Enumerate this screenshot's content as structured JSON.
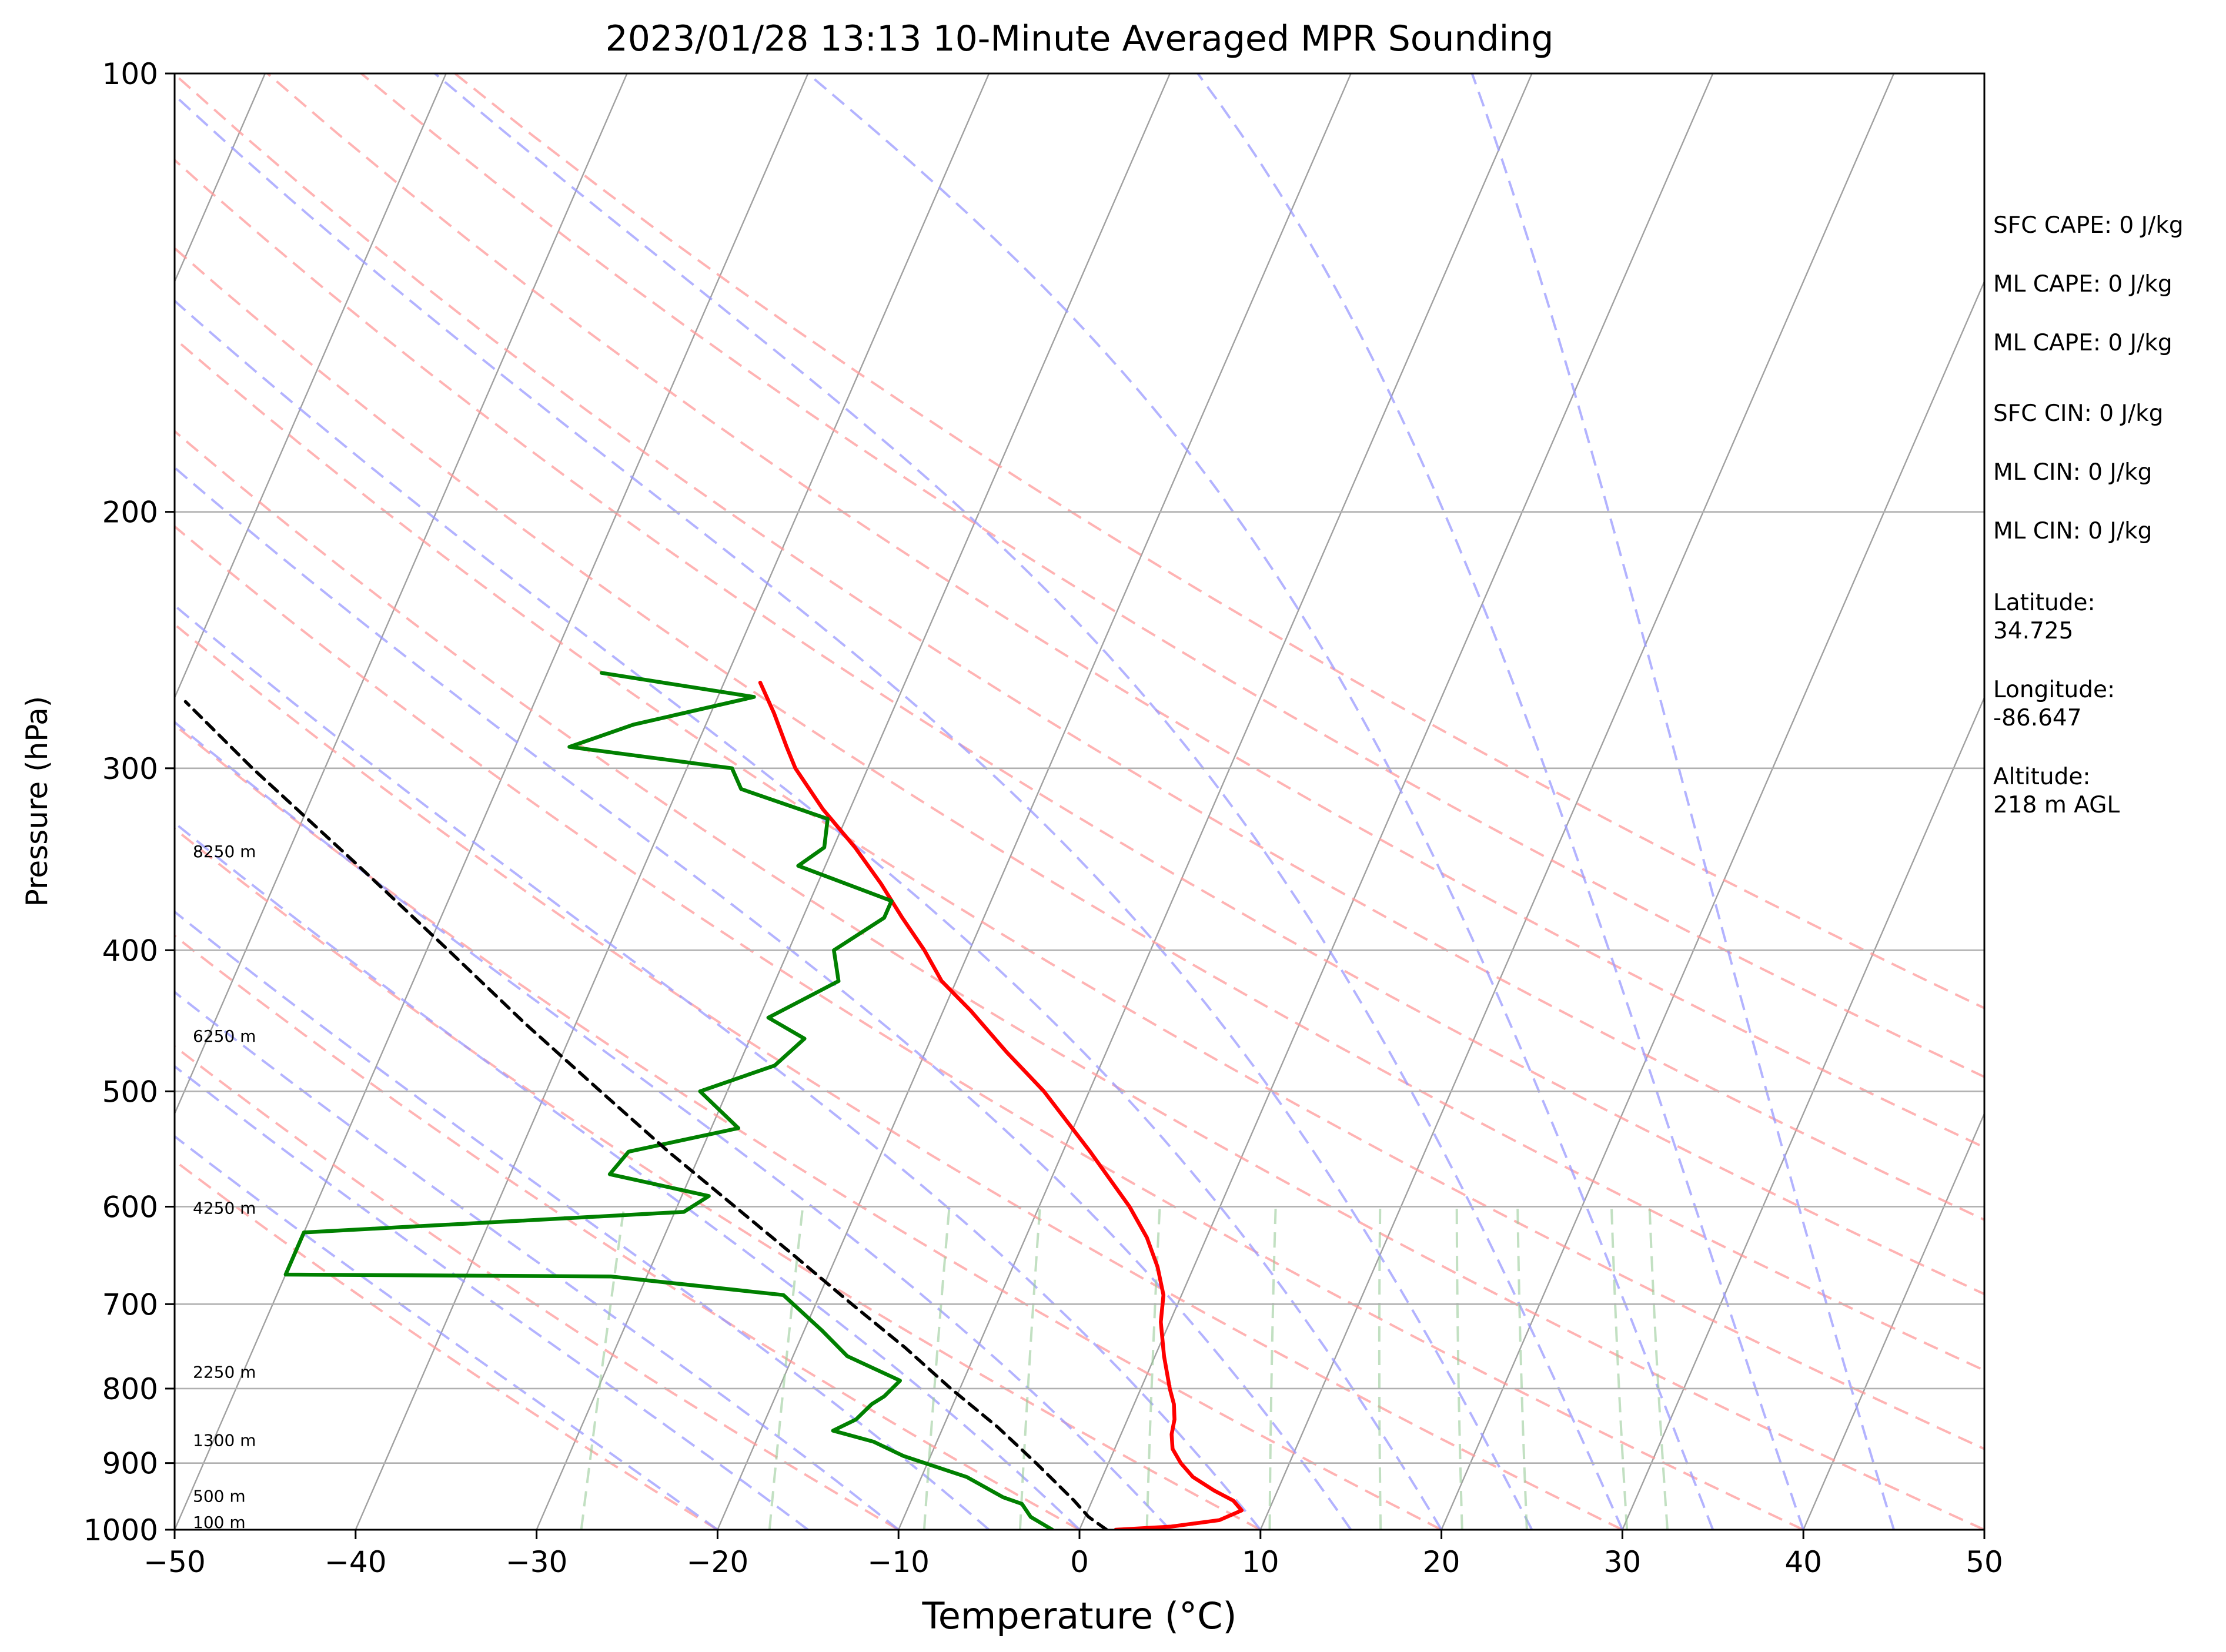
{
  "chart_data": {
    "type": "line",
    "subtype": "skew-t log-p sounding",
    "title": "2023/01/28 13:13 10-Minute Averaged MPR Sounding",
    "xlabel": "Temperature (°C)",
    "ylabel": "Pressure (hPa)",
    "xlim": [
      -50,
      50
    ],
    "ylim": [
      1000,
      100
    ],
    "y_scale": "log",
    "x_ticks": [
      -50,
      -40,
      -30,
      -20,
      -10,
      0,
      10,
      20,
      30,
      40,
      50
    ],
    "x_tick_labels": [
      "−50",
      "−40",
      "−30",
      "−20",
      "−10",
      "0",
      "10",
      "20",
      "30",
      "40",
      "50"
    ],
    "y_ticks": [
      100,
      200,
      300,
      400,
      500,
      600,
      700,
      800,
      900,
      1000
    ],
    "y_tick_labels": [
      "100",
      "200",
      "300",
      "400",
      "500",
      "600",
      "700",
      "800",
      "900",
      "1000"
    ],
    "grid": true,
    "colors": {
      "temperature": "#ff0000",
      "dewpoint": "#008000",
      "parcel": "#000000",
      "isotherms": "#a0a0a0",
      "dry_adiabats": "#ff9999",
      "moist_adiabats": "#9999ff",
      "mixing_ratio": "#99cc99"
    },
    "series": [
      {
        "key": "temperature",
        "points": [
          [
            1000,
            2.0
          ],
          [
            995,
            5.0
          ],
          [
            985,
            7.5
          ],
          [
            970,
            8.5
          ],
          [
            955,
            7.8
          ],
          [
            940,
            6.5
          ],
          [
            920,
            5.0
          ],
          [
            900,
            4.0
          ],
          [
            880,
            3.2
          ],
          [
            860,
            2.8
          ],
          [
            840,
            2.6
          ],
          [
            820,
            2.2
          ],
          [
            800,
            1.6
          ],
          [
            760,
            0.5
          ],
          [
            720,
            -0.5
          ],
          [
            690,
            -1.0
          ],
          [
            660,
            -2.0
          ],
          [
            630,
            -3.3
          ],
          [
            600,
            -5.0
          ],
          [
            550,
            -8.5
          ],
          [
            500,
            -12.5
          ],
          [
            470,
            -15.5
          ],
          [
            440,
            -18.5
          ],
          [
            420,
            -20.8
          ],
          [
            400,
            -22.5
          ],
          [
            380,
            -24.5
          ],
          [
            360,
            -26.5
          ],
          [
            340,
            -28.8
          ],
          [
            320,
            -31.5
          ],
          [
            300,
            -34.0
          ],
          [
            290,
            -35.0
          ],
          [
            275,
            -36.5
          ],
          [
            262,
            -38.0
          ]
        ]
      },
      {
        "key": "dewpoint",
        "points": [
          [
            1000,
            -1.5
          ],
          [
            980,
            -3.0
          ],
          [
            960,
            -3.8
          ],
          [
            950,
            -5.0
          ],
          [
            920,
            -7.5
          ],
          [
            890,
            -11.5
          ],
          [
            870,
            -13.5
          ],
          [
            855,
            -16.0
          ],
          [
            840,
            -15.0
          ],
          [
            820,
            -14.5
          ],
          [
            810,
            -14.0
          ],
          [
            790,
            -13.5
          ],
          [
            760,
            -17.0
          ],
          [
            730,
            -19.0
          ],
          [
            690,
            -22.0
          ],
          [
            670,
            -32.0
          ],
          [
            668,
            -50.0
          ],
          [
            625,
            -50.0
          ],
          [
            620,
            -45.0
          ],
          [
            605,
            -29.5
          ],
          [
            590,
            -28.5
          ],
          [
            570,
            -34.5
          ],
          [
            550,
            -34.0
          ],
          [
            530,
            -28.5
          ],
          [
            500,
            -31.5
          ],
          [
            480,
            -28.0
          ],
          [
            460,
            -27.0
          ],
          [
            445,
            -29.5
          ],
          [
            420,
            -26.5
          ],
          [
            400,
            -27.5
          ],
          [
            380,
            -25.5
          ],
          [
            370,
            -25.5
          ],
          [
            350,
            -31.5
          ],
          [
            340,
            -30.5
          ],
          [
            325,
            -31.0
          ],
          [
            310,
            -36.5
          ],
          [
            300,
            -37.5
          ],
          [
            290,
            -47.0
          ],
          [
            280,
            -44.0
          ],
          [
            268,
            -38.0
          ],
          [
            258,
            -47.0
          ]
        ]
      },
      {
        "key": "parcel",
        "points": [
          [
            1000,
            1.5
          ],
          [
            980,
            0.2
          ],
          [
            955,
            -1.0
          ],
          [
            900,
            -4.0
          ],
          [
            850,
            -7.0
          ],
          [
            800,
            -10.5
          ],
          [
            750,
            -14.0
          ],
          [
            700,
            -18.0
          ],
          [
            650,
            -22.2
          ],
          [
            600,
            -26.8
          ],
          [
            550,
            -31.8
          ],
          [
            500,
            -37.0
          ],
          [
            450,
            -42.7
          ],
          [
            400,
            -48.8
          ],
          [
            350,
            -55.8
          ],
          [
            300,
            -64.0
          ],
          [
            270,
            -69.3
          ]
        ]
      }
    ],
    "height_labels": [
      {
        "text": "100 m",
        "p": 988
      },
      {
        "text": "500 m",
        "p": 948
      },
      {
        "text": "1300 m",
        "p": 868
      },
      {
        "text": "2250 m",
        "p": 779
      },
      {
        "text": "4250 m",
        "p": 601
      },
      {
        "text": "6250 m",
        "p": 458
      },
      {
        "text": "8250 m",
        "p": 342
      }
    ],
    "background_lines": {
      "isotherms_c": [
        -150,
        -140,
        -130,
        -120,
        -110,
        -100,
        -90,
        -80,
        -70,
        -60,
        -50,
        -40,
        -30,
        -20,
        -10,
        0,
        10,
        20,
        30,
        40,
        50
      ],
      "dry_adiabats_c": [
        -20,
        -10,
        0,
        10,
        20,
        30,
        40,
        50,
        60,
        70,
        80,
        90,
        100,
        110,
        120
      ],
      "moist_adiabats_c": [
        -20,
        -15,
        -10,
        -5,
        0,
        5,
        10,
        15,
        20,
        25,
        30,
        35,
        40,
        45
      ],
      "mixing_ratios_gkg": [
        0.4,
        1,
        2,
        3,
        5,
        8,
        12,
        16,
        20,
        28,
        32
      ]
    }
  },
  "info": {
    "sfc_cape": "SFC CAPE: 0 J/kg",
    "ml_cape_1": "ML CAPE: 0 J/kg",
    "ml_cape_2": "ML CAPE: 0 J/kg",
    "sfc_cin": "SFC CIN: 0 J/kg",
    "ml_cin_1": "ML CIN: 0 J/kg",
    "ml_cin_2": "ML CIN: 0 J/kg",
    "latitude_label": "Latitude:",
    "latitude_value": "34.725",
    "longitude_label": "Longitude:",
    "longitude_value": "-86.647",
    "altitude_label": "Altitude:",
    "altitude_value": "218 m AGL"
  }
}
